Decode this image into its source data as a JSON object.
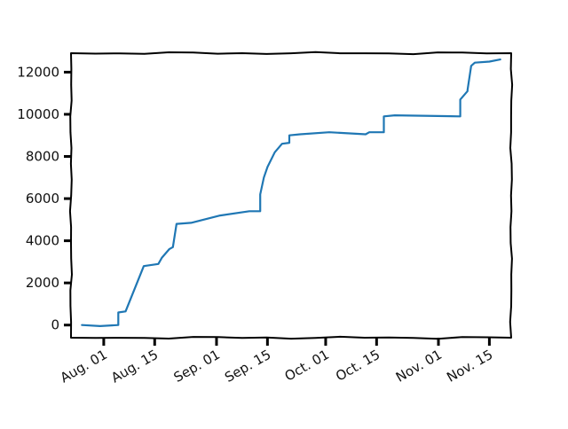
{
  "chart_data": {
    "type": "line",
    "title": "",
    "xlabel": "",
    "ylabel": "",
    "xlim": [
      "2023-07-23",
      "2023-11-21"
    ],
    "ylim": [
      -600,
      12900
    ],
    "grid": false,
    "legend": "none",
    "style": "xkcd hand-drawn",
    "line_color": "#1f77b4",
    "x_ticks": [
      {
        "date": "2023-08-01",
        "label": "Aug. 01"
      },
      {
        "date": "2023-08-15",
        "label": "Aug. 15"
      },
      {
        "date": "2023-09-01",
        "label": "Sep. 01"
      },
      {
        "date": "2023-09-15",
        "label": "Sep. 15"
      },
      {
        "date": "2023-10-01",
        "label": "Oct. 01"
      },
      {
        "date": "2023-10-15",
        "label": "Oct. 15"
      },
      {
        "date": "2023-11-01",
        "label": "Nov. 01"
      },
      {
        "date": "2023-11-15",
        "label": "Nov. 15"
      }
    ],
    "y_ticks": [
      0,
      2000,
      4000,
      6000,
      8000,
      10000,
      12000
    ],
    "series": [
      {
        "x": [
          "2023-07-26",
          "2023-07-31",
          "2023-08-05",
          "2023-08-05",
          "2023-08-07",
          "2023-08-12",
          "2023-08-16",
          "2023-08-17",
          "2023-08-19",
          "2023-08-20",
          "2023-08-21",
          "2023-08-25",
          "2023-09-02",
          "2023-09-10",
          "2023-09-13",
          "2023-09-13",
          "2023-09-14",
          "2023-09-15",
          "2023-09-17",
          "2023-09-19",
          "2023-09-21",
          "2023-09-21",
          "2023-09-24",
          "2023-10-02",
          "2023-10-12",
          "2023-10-13",
          "2023-10-17",
          "2023-10-17",
          "2023-10-20",
          "2023-11-07",
          "2023-11-07",
          "2023-11-09",
          "2023-11-09",
          "2023-11-10",
          "2023-11-11",
          "2023-11-15",
          "2023-11-18"
        ],
        "y": [
          0,
          -50,
          0,
          600,
          650,
          2800,
          2900,
          3200,
          3600,
          3700,
          4800,
          4850,
          5200,
          5400,
          5400,
          6200,
          7000,
          7500,
          8200,
          8600,
          8650,
          9000,
          9050,
          9150,
          9050,
          9150,
          9150,
          9900,
          9950,
          9900,
          10700,
          11100,
          11150,
          12300,
          12450,
          12500,
          12600
        ]
      }
    ]
  }
}
